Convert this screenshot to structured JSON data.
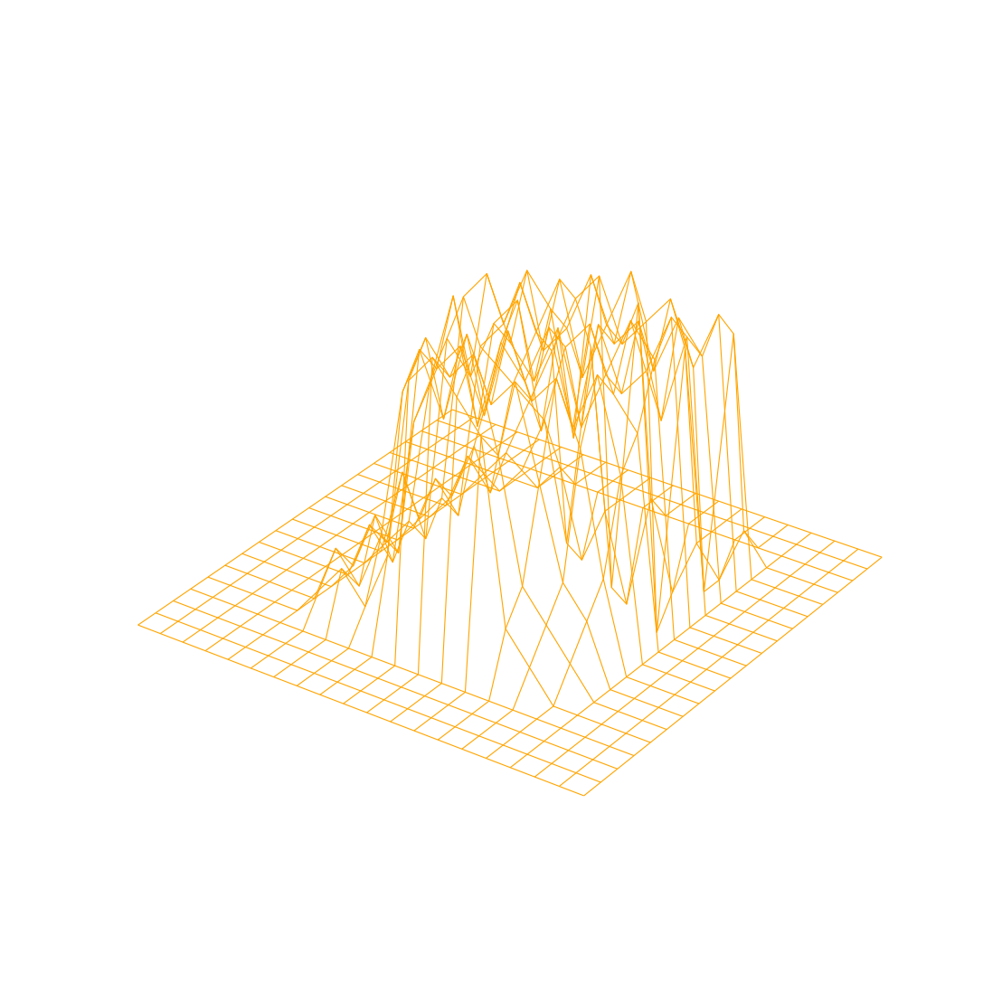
{
  "chart_data": {
    "type": "surface",
    "color": "orange",
    "tick_labels": false,
    "z": [
      [
        0,
        0,
        0,
        0,
        0,
        0,
        0,
        0,
        0,
        0,
        0,
        0,
        0,
        0,
        0,
        0,
        0,
        0,
        0,
        0
      ],
      [
        0,
        0,
        0,
        0,
        0,
        0,
        0,
        0,
        0,
        0,
        0,
        0,
        0,
        0,
        0,
        0,
        0,
        0,
        0,
        0
      ],
      [
        0,
        0,
        0,
        0,
        0,
        0,
        0,
        0,
        0,
        0,
        0,
        0,
        0,
        0,
        0,
        0,
        0,
        0,
        0,
        0
      ],
      [
        0,
        0,
        0,
        0,
        0,
        0,
        0,
        0,
        0,
        0,
        0,
        0,
        0,
        0,
        0,
        0,
        0,
        0,
        0,
        0
      ],
      [
        0,
        0,
        0,
        0,
        0,
        1,
        2,
        1,
        3,
        9,
        10,
        9,
        8,
        2,
        1,
        0,
        0,
        0,
        0,
        0
      ],
      [
        0,
        0,
        0,
        0,
        0,
        2,
        1,
        3,
        8,
        10,
        9,
        10,
        7,
        3,
        2,
        1,
        0,
        0,
        0,
        0
      ],
      [
        0,
        0,
        0,
        0,
        0,
        1,
        3,
        2,
        9,
        7,
        10,
        8,
        9,
        6,
        3,
        2,
        0,
        0,
        0,
        0
      ],
      [
        0,
        0,
        0,
        0,
        0,
        2,
        1,
        6,
        8,
        9,
        7,
        10,
        8,
        9,
        7,
        3,
        0,
        0,
        0,
        0
      ],
      [
        0,
        0,
        0,
        0,
        0,
        1,
        2,
        7,
        10,
        6,
        9,
        8,
        10,
        7,
        9,
        6,
        0,
        0,
        0,
        0
      ],
      [
        0,
        0,
        0,
        0,
        0,
        3,
        1,
        8,
        7,
        9,
        10,
        6,
        9,
        10,
        8,
        7,
        0,
        0,
        0,
        0
      ],
      [
        0,
        0,
        0,
        0,
        0,
        1,
        2,
        9,
        10,
        8,
        7,
        9,
        6,
        8,
        10,
        9,
        0,
        0,
        0,
        0
      ],
      [
        0,
        0,
        0,
        0,
        0,
        2,
        1,
        7,
        8,
        10,
        9,
        5,
        9,
        7,
        8,
        10,
        0,
        0,
        0,
        0
      ],
      [
        0,
        0,
        0,
        0,
        0,
        1,
        3,
        6,
        9,
        7,
        8,
        10,
        8,
        9,
        6,
        9,
        0,
        0,
        0,
        0
      ],
      [
        0,
        0,
        0,
        0,
        0,
        2,
        1,
        5,
        7,
        9,
        6,
        8,
        10,
        7,
        9,
        8,
        0,
        0,
        0,
        0
      ],
      [
        0,
        0,
        0,
        0,
        0,
        1,
        2,
        4,
        6,
        8,
        9,
        7,
        8,
        9,
        7,
        9,
        0,
        0,
        0,
        0
      ],
      [
        0,
        0,
        0,
        0,
        0,
        0,
        1,
        3,
        -1,
        6,
        -2,
        8,
        -3,
        7,
        -1,
        8,
        0,
        0,
        0,
        0
      ],
      [
        0,
        0,
        0,
        0,
        0,
        0,
        0,
        1,
        -2,
        0,
        -3,
        1,
        -2,
        0,
        -1,
        1,
        0,
        0,
        0,
        0
      ],
      [
        0,
        0,
        0,
        0,
        0,
        0,
        0,
        0,
        0,
        0,
        0,
        0,
        0,
        0,
        0,
        0,
        0,
        0,
        0,
        0
      ],
      [
        0,
        0,
        0,
        0,
        0,
        0,
        0,
        0,
        0,
        0,
        0,
        0,
        0,
        0,
        0,
        0,
        0,
        0,
        0,
        0
      ],
      [
        0,
        0,
        0,
        0,
        0,
        0,
        0,
        0,
        0,
        0,
        0,
        0,
        0,
        0,
        0,
        0,
        0,
        0,
        0,
        0
      ]
    ]
  }
}
